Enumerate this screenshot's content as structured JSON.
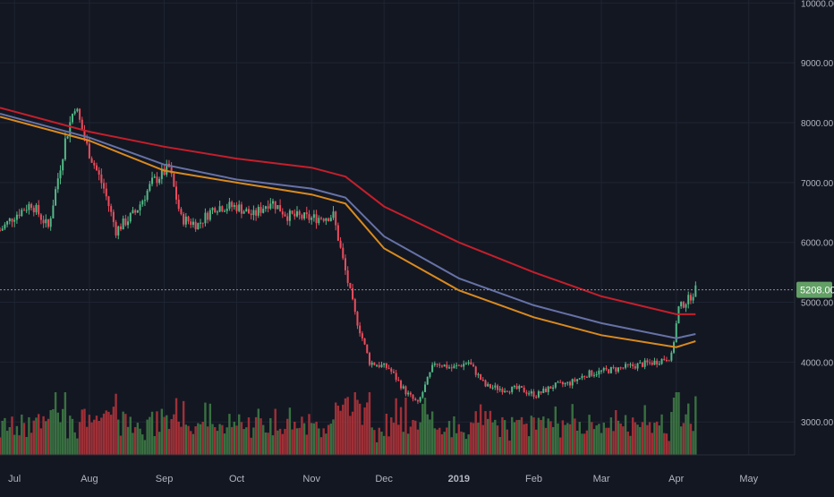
{
  "colors": {
    "background": "#131722",
    "grid": "#1f2433",
    "axis_text": "#b2b5be",
    "candle_up": "#53b987",
    "candle_down": "#eb4d5c",
    "volume_up": "#3e7a45",
    "volume_down": "#b0333a",
    "ma_red": "#c41f2b",
    "ma_blue": "#6672a6",
    "ma_orange": "#d98a1e",
    "price_label_bg": "#62a065"
  },
  "chart_data": {
    "type": "candlestick",
    "title": "",
    "x_axis": {
      "ticks": [
        "Jul",
        "Aug",
        "Sep",
        "Oct",
        "Nov",
        "Dec",
        "2019",
        "Feb",
        "Mar",
        "Apr",
        "May"
      ],
      "range": [
        "2018-06-25",
        "2019-05-20"
      ]
    },
    "y_axis": {
      "side": "right",
      "ticks": [
        "3000.00",
        "4000.00",
        "5000.00",
        "6000.00",
        "7000.00",
        "8000.00",
        "9000.00",
        "10000.00"
      ],
      "range": [
        2450,
        10050
      ]
    },
    "last_price": {
      "value": 5208,
      "label": "5208.00"
    },
    "close_series": [
      {
        "date": "2018-06-25",
        "close": 6200
      },
      {
        "date": "2018-07-01",
        "close": 6450
      },
      {
        "date": "2018-07-08",
        "close": 6650
      },
      {
        "date": "2018-07-15",
        "close": 6250
      },
      {
        "date": "2018-07-22",
        "close": 7700
      },
      {
        "date": "2018-07-26",
        "close": 8300
      },
      {
        "date": "2018-07-31",
        "close": 7600
      },
      {
        "date": "2018-08-07",
        "close": 6900
      },
      {
        "date": "2018-08-12",
        "close": 6200
      },
      {
        "date": "2018-08-20",
        "close": 6500
      },
      {
        "date": "2018-08-27",
        "close": 7000
      },
      {
        "date": "2018-09-03",
        "close": 7250
      },
      {
        "date": "2018-09-08",
        "close": 6400
      },
      {
        "date": "2018-09-15",
        "close": 6300
      },
      {
        "date": "2018-09-22",
        "close": 6600
      },
      {
        "date": "2018-10-01",
        "close": 6600
      },
      {
        "date": "2018-10-08",
        "close": 6450
      },
      {
        "date": "2018-10-15",
        "close": 6700
      },
      {
        "date": "2018-10-22",
        "close": 6450
      },
      {
        "date": "2018-11-01",
        "close": 6400
      },
      {
        "date": "2018-11-10",
        "close": 6450
      },
      {
        "date": "2018-11-14",
        "close": 5700
      },
      {
        "date": "2018-11-19",
        "close": 4800
      },
      {
        "date": "2018-11-25",
        "close": 4000
      },
      {
        "date": "2018-12-03",
        "close": 3900
      },
      {
        "date": "2018-12-10",
        "close": 3500
      },
      {
        "date": "2018-12-15",
        "close": 3300
      },
      {
        "date": "2018-12-22",
        "close": 4000
      },
      {
        "date": "2018-12-29",
        "close": 3900
      },
      {
        "date": "2019-01-05",
        "close": 4000
      },
      {
        "date": "2019-01-12",
        "close": 3600
      },
      {
        "date": "2019-01-19",
        "close": 3550
      },
      {
        "date": "2019-01-26",
        "close": 3550
      },
      {
        "date": "2019-02-02",
        "close": 3450
      },
      {
        "date": "2019-02-09",
        "close": 3600
      },
      {
        "date": "2019-02-16",
        "close": 3650
      },
      {
        "date": "2019-02-23",
        "close": 3800
      },
      {
        "date": "2019-03-02",
        "close": 3850
      },
      {
        "date": "2019-03-09",
        "close": 3900
      },
      {
        "date": "2019-03-16",
        "close": 3950
      },
      {
        "date": "2019-03-23",
        "close": 4000
      },
      {
        "date": "2019-03-30",
        "close": 4100
      },
      {
        "date": "2019-04-02",
        "close": 4900
      },
      {
        "date": "2019-04-06",
        "close": 5050
      },
      {
        "date": "2019-04-09",
        "close": 5208
      }
    ],
    "moving_averages": [
      {
        "color": "red",
        "points": [
          {
            "date": "2018-06-25",
            "value": 8250
          },
          {
            "date": "2018-08-01",
            "value": 7850
          },
          {
            "date": "2018-09-01",
            "value": 7600
          },
          {
            "date": "2018-10-01",
            "value": 7400
          },
          {
            "date": "2018-11-01",
            "value": 7250
          },
          {
            "date": "2018-11-15",
            "value": 7100
          },
          {
            "date": "2018-12-01",
            "value": 6600
          },
          {
            "date": "2019-01-01",
            "value": 6000
          },
          {
            "date": "2019-02-01",
            "value": 5500
          },
          {
            "date": "2019-03-01",
            "value": 5100
          },
          {
            "date": "2019-04-01",
            "value": 4800
          },
          {
            "date": "2019-04-09",
            "value": 4800
          }
        ]
      },
      {
        "color": "blue",
        "points": [
          {
            "date": "2018-06-25",
            "value": 8150
          },
          {
            "date": "2018-08-01",
            "value": 7750
          },
          {
            "date": "2018-09-01",
            "value": 7300
          },
          {
            "date": "2018-10-01",
            "value": 7050
          },
          {
            "date": "2018-11-01",
            "value": 6900
          },
          {
            "date": "2018-11-15",
            "value": 6750
          },
          {
            "date": "2018-12-01",
            "value": 6100
          },
          {
            "date": "2019-01-01",
            "value": 5400
          },
          {
            "date": "2019-02-01",
            "value": 4950
          },
          {
            "date": "2019-03-01",
            "value": 4650
          },
          {
            "date": "2019-04-01",
            "value": 4400
          },
          {
            "date": "2019-04-09",
            "value": 4470
          }
        ]
      },
      {
        "color": "orange",
        "points": [
          {
            "date": "2018-06-25",
            "value": 8100
          },
          {
            "date": "2018-08-01",
            "value": 7700
          },
          {
            "date": "2018-09-01",
            "value": 7200
          },
          {
            "date": "2018-10-01",
            "value": 7000
          },
          {
            "date": "2018-11-01",
            "value": 6800
          },
          {
            "date": "2018-11-15",
            "value": 6650
          },
          {
            "date": "2018-12-01",
            "value": 5900
          },
          {
            "date": "2019-01-01",
            "value": 5200
          },
          {
            "date": "2019-02-01",
            "value": 4750
          },
          {
            "date": "2019-03-01",
            "value": 4450
          },
          {
            "date": "2019-04-01",
            "value": 4250
          },
          {
            "date": "2019-04-09",
            "value": 4350
          }
        ]
      }
    ],
    "volume_note": "relative volume bars along bottom, color follows candle direction",
    "grid": true
  }
}
